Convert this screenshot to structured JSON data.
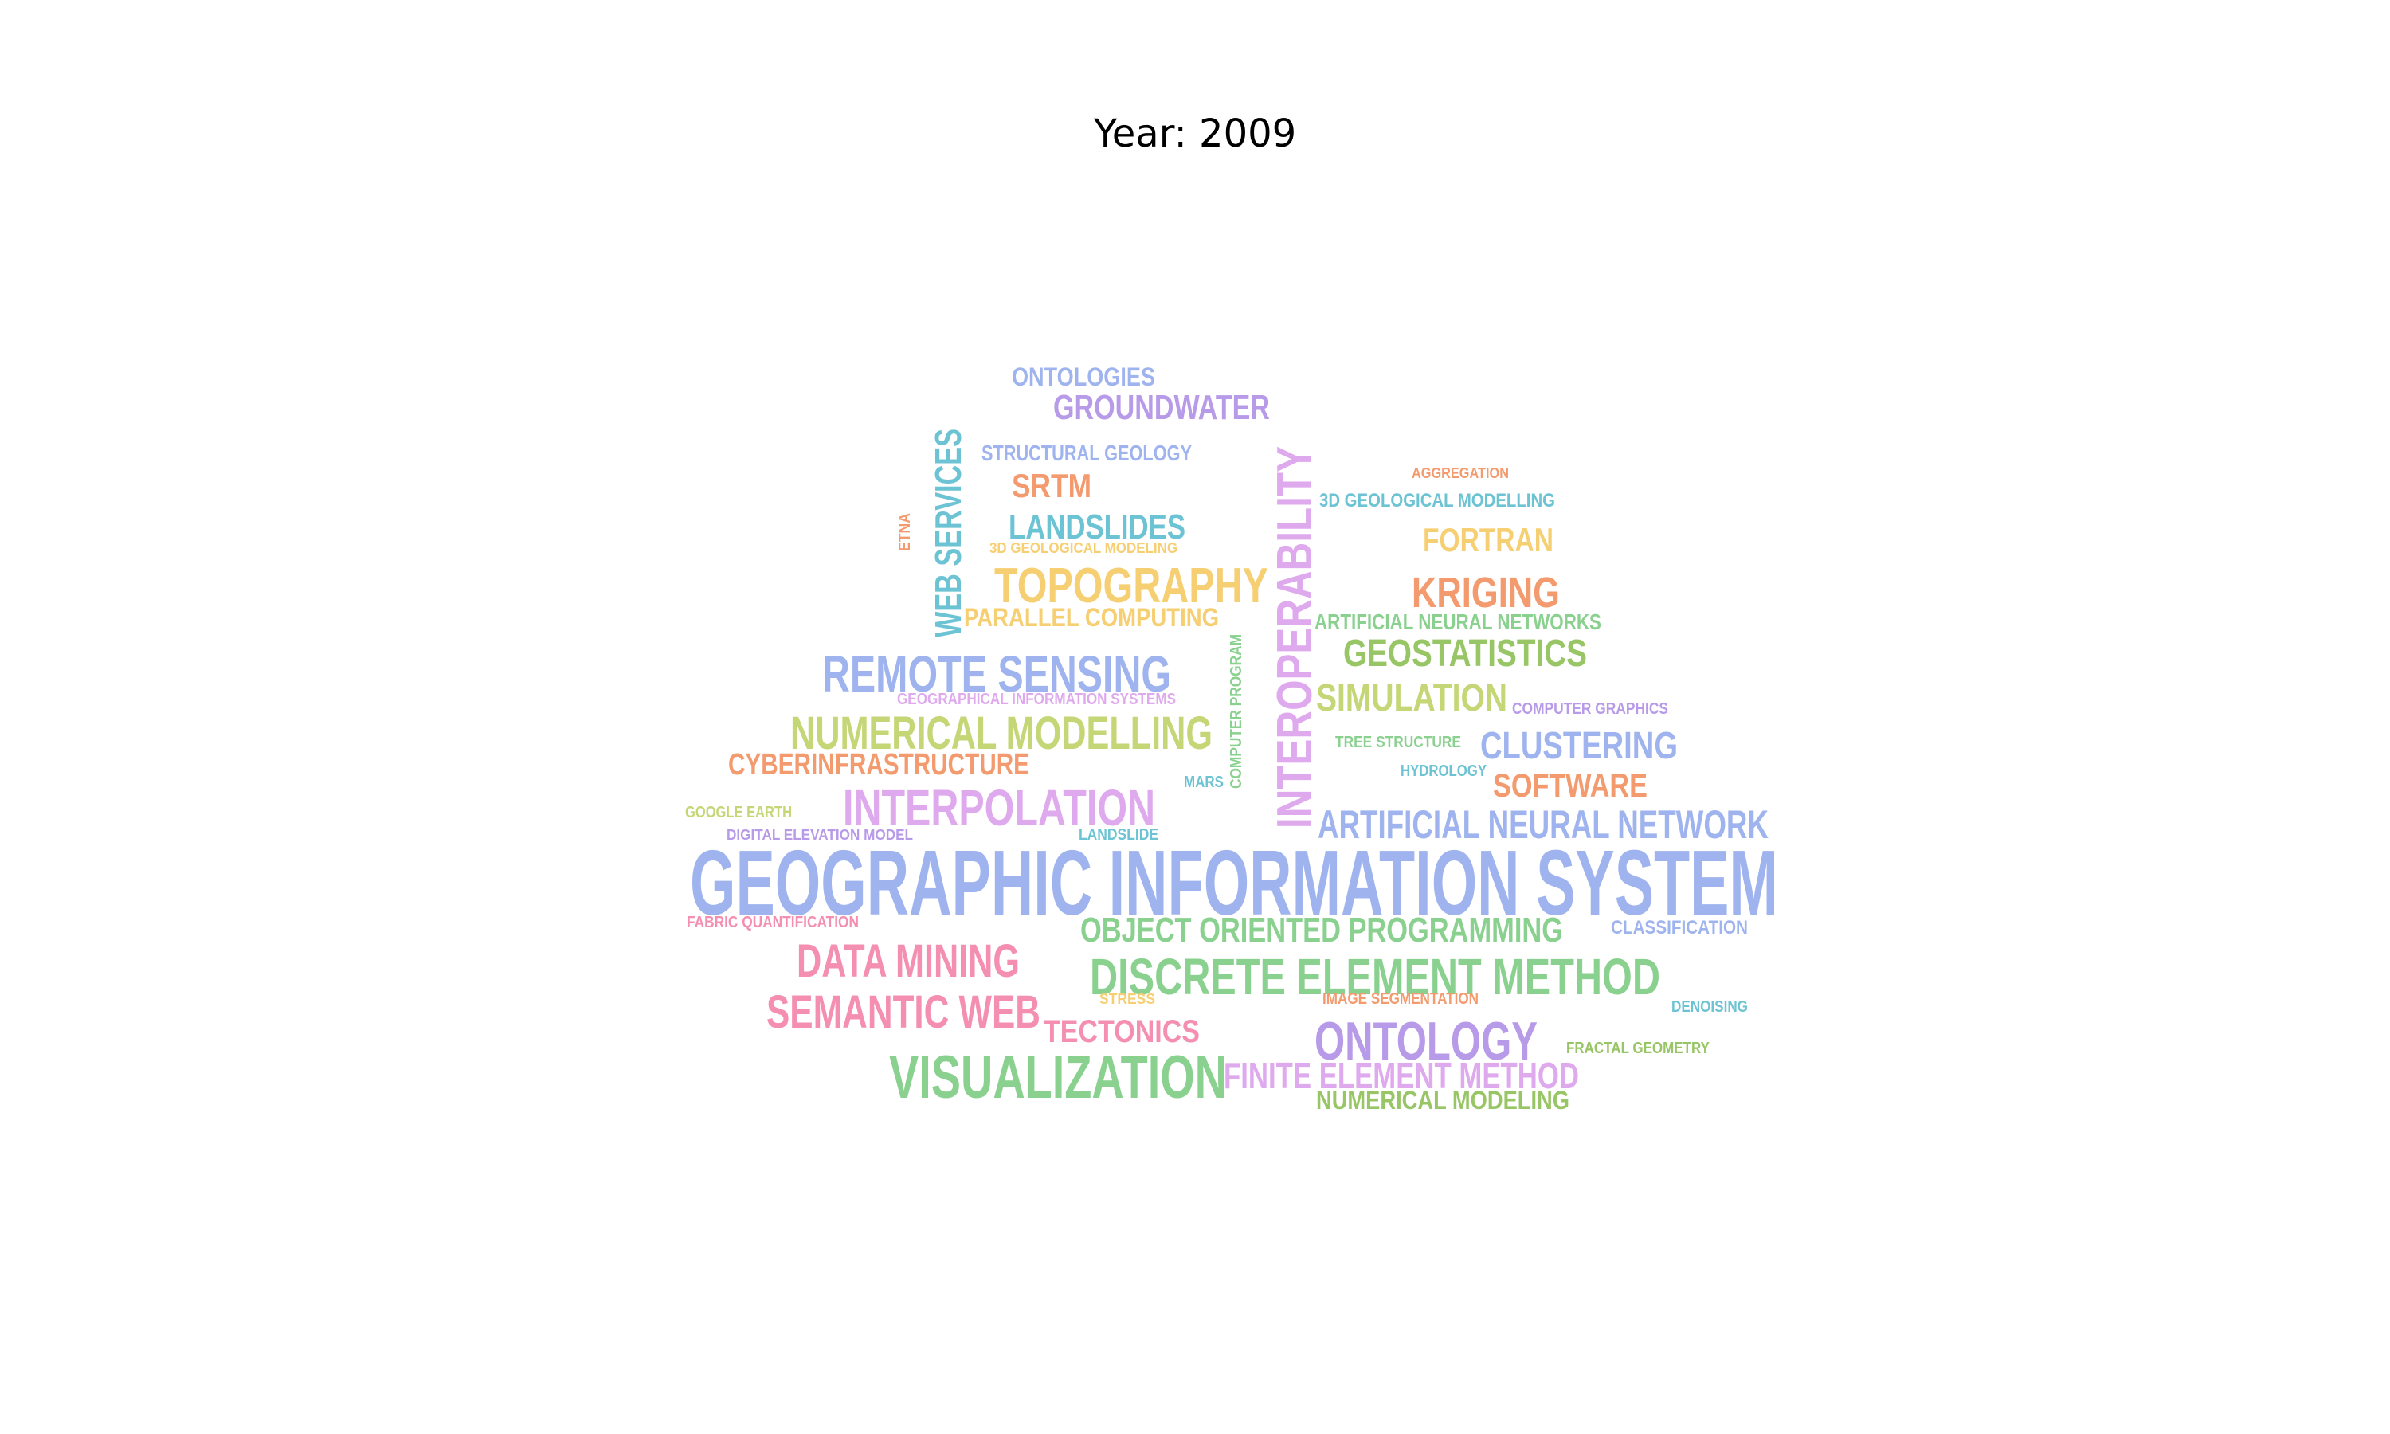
{
  "title": "Year: 2009",
  "palette": {
    "blue": "#9fb4ee",
    "purple": "#b79ae8",
    "lilac": "#dfa9ee",
    "teal": "#6cc3d3",
    "orange": "#f39a6e",
    "yellow": "#f6cf72",
    "lime": "#c4d675",
    "green": "#8ad18f",
    "olive": "#98c565",
    "pink": "#f48fb1"
  },
  "words": [
    {
      "text": "GEOGRAPHIC INFORMATION SYSTEM",
      "color": "blue"
    },
    {
      "text": "INTEROPERABILITY",
      "color": "lilac"
    },
    {
      "text": "VISUALIZATION",
      "color": "green"
    },
    {
      "text": "DISCRETE ELEMENT METHOD",
      "color": "green"
    },
    {
      "text": "REMOTE SENSING",
      "color": "blue"
    },
    {
      "text": "NUMERICAL MODELLING",
      "color": "lime"
    },
    {
      "text": "INTERPOLATION",
      "color": "lilac"
    },
    {
      "text": "TOPOGRAPHY",
      "color": "yellow"
    },
    {
      "text": "ONTOLOGY",
      "color": "purple"
    },
    {
      "text": "DATA MINING",
      "color": "pink"
    },
    {
      "text": "SEMANTIC WEB",
      "color": "pink"
    },
    {
      "text": "WEB SERVICES",
      "color": "teal"
    },
    {
      "text": "ARTIFICIAL NEURAL NETWORK",
      "color": "blue"
    },
    {
      "text": "GEOSTATISTICS",
      "color": "olive"
    },
    {
      "text": "SIMULATION",
      "color": "lime"
    },
    {
      "text": "KRIGING",
      "color": "orange"
    },
    {
      "text": "CLUSTERING",
      "color": "blue"
    },
    {
      "text": "GROUNDWATER",
      "color": "purple"
    },
    {
      "text": "LANDSLIDES",
      "color": "teal"
    },
    {
      "text": "OBJECT ORIENTED PROGRAMMING",
      "color": "green"
    },
    {
      "text": "FINITE ELEMENT METHOD",
      "color": "lilac"
    },
    {
      "text": "TECTONICS",
      "color": "pink"
    },
    {
      "text": "SOFTWARE",
      "color": "orange"
    },
    {
      "text": "CYBERINFRASTRUCTURE",
      "color": "orange"
    },
    {
      "text": "FORTRAN",
      "color": "yellow"
    },
    {
      "text": "SRTM",
      "color": "orange"
    },
    {
      "text": "ONTOLOGIES",
      "color": "blue"
    },
    {
      "text": "NUMERICAL MODELING",
      "color": "olive"
    },
    {
      "text": "PARALLEL COMPUTING",
      "color": "yellow"
    },
    {
      "text": "STRUCTURAL GEOLOGY",
      "color": "blue"
    },
    {
      "text": "ARTIFICIAL NEURAL NETWORKS",
      "color": "green"
    },
    {
      "text": "3D GEOLOGICAL MODELLING",
      "color": "teal"
    },
    {
      "text": "CLASSIFICATION",
      "color": "blue"
    },
    {
      "text": "COMPUTER GRAPHICS",
      "color": "purple"
    },
    {
      "text": "GEOGRAPHICAL INFORMATION SYSTEMS",
      "color": "lilac"
    },
    {
      "text": "TREE STRUCTURE",
      "color": "green"
    },
    {
      "text": "HYDROLOGY",
      "color": "teal"
    },
    {
      "text": "GOOGLE EARTH",
      "color": "lime"
    },
    {
      "text": "DIGITAL ELEVATION MODEL",
      "color": "purple"
    },
    {
      "text": "LANDSLIDE",
      "color": "teal"
    },
    {
      "text": "FABRIC QUANTIFICATION",
      "color": "pink"
    },
    {
      "text": "DENOISING",
      "color": "teal"
    },
    {
      "text": "FRACTAL GEOMETRY",
      "color": "olive"
    },
    {
      "text": "IMAGE SEGMENTATION",
      "color": "orange"
    },
    {
      "text": "STRESS",
      "color": "yellow"
    },
    {
      "text": "AGGREGATION",
      "color": "orange"
    },
    {
      "text": "3D GEOLOGICAL MODELING",
      "color": "yellow"
    },
    {
      "text": "COMPUTER PROGRAM",
      "color": "green"
    },
    {
      "text": "ETNA",
      "color": "orange"
    },
    {
      "text": "MARS",
      "color": "teal"
    }
  ]
}
